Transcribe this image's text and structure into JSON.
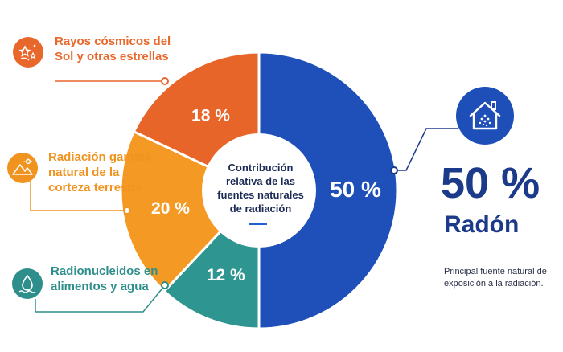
{
  "chart_data": {
    "type": "pie",
    "title": "Contribución relativa de las fuentes naturales de radiación",
    "slices": [
      {
        "label": "Radón",
        "value": 50,
        "value_label": "50 %",
        "color": "#1f4fb8",
        "color_dark": "#0f3b99"
      },
      {
        "label": "Radionucleidos en alimentos y agua",
        "value": 12,
        "value_label": "12 %",
        "color": "#2e9590",
        "color_dark": "#23807c"
      },
      {
        "label": "Radiación gamma natural de la corteza terrestre",
        "value": 20,
        "value_label": "20 %",
        "color": "#f49a24",
        "color_dark": "#ee8a18"
      },
      {
        "label": "Rayos cósmicos del Sol y otras estrellas",
        "value": 18,
        "value_label": "18 %",
        "color": "#e8652a",
        "color_dark": "#dd5a22"
      }
    ]
  },
  "annotations": {
    "rays": {
      "text": "Rayos cósmicos del Sol y otras estrellas",
      "color": "#e8672a",
      "icon": "stars-icon"
    },
    "gamma": {
      "text": "Radiación gamma natural de la corteza terrestre",
      "color": "#f0931f",
      "icon": "mountains-icon"
    },
    "food": {
      "text": "Radionucleidos en alimentos y agua",
      "color": "#2e8e8c",
      "icon": "water-drop-icon"
    }
  },
  "highlight": {
    "value": "50 %",
    "name": "Radón",
    "description": "Principal fuente natural de exposición a la radiación.",
    "icon": "house-radon-icon",
    "color": "#1c3a8a"
  }
}
